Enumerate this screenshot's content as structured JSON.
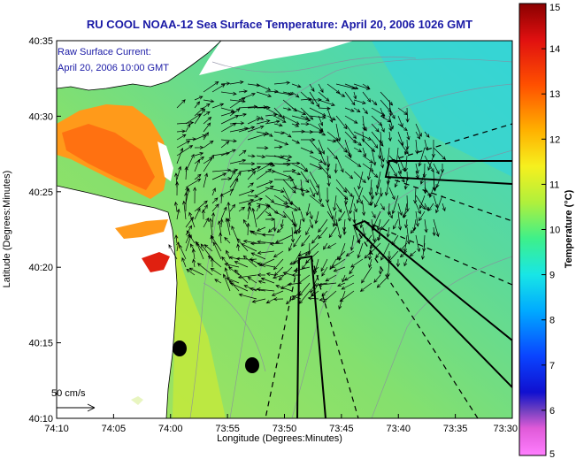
{
  "title": "RU COOL  NOAA-12  Sea Surface Temperature:  April 20, 2006 1026 GMT",
  "inset": {
    "line1": "Raw Surface Current:",
    "line2": "April 20, 2006 10:00 GMT"
  },
  "scale_label": "50 cm/s",
  "map": {
    "xlabel": "Longitude (Degrees:Minutes)",
    "ylabel": "Latitude (Degrees:Minutes)",
    "x_ticks": [
      "74:10",
      "74:05",
      "74:00",
      "73:55",
      "73:50",
      "73:45",
      "73:40",
      "73:35",
      "73:30"
    ],
    "y_ticks": [
      "40:35",
      "40:30",
      "40:25",
      "40:20",
      "40:15",
      "40:10"
    ]
  },
  "colorbar": {
    "label": "Temperature (°C)",
    "ticks": [
      "15",
      "14",
      "13",
      "12",
      "11",
      "10",
      "9",
      "8",
      "7",
      "6",
      "5"
    ],
    "range": [
      5,
      15
    ]
  },
  "colors": {
    "land": "#ffffff",
    "water_base": "#8fe06a",
    "title": "#1a1aa6"
  }
}
